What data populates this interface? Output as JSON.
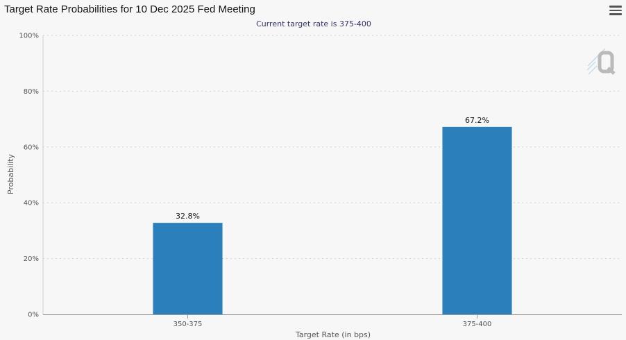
{
  "header": {
    "title": "Target Rate Probabilities for 10 Dec 2025 Fed Meeting",
    "menu_icon": "hamburger-menu-icon"
  },
  "chart_data": {
    "type": "bar",
    "title": "Target Rate Probabilities for 10 Dec 2025 Fed Meeting",
    "subtitle": "Current target rate is 375-400",
    "categories": [
      "350-375",
      "375-400"
    ],
    "values": [
      32.8,
      67.2
    ],
    "data_labels": [
      "32.8%",
      "67.2%"
    ],
    "xlabel": "Target Rate (in bps)",
    "ylabel": "Probability",
    "ylim": [
      0,
      100
    ],
    "yticks": [
      0,
      20,
      40,
      60,
      80,
      100
    ],
    "ytick_labels": [
      "0%",
      "20%",
      "40%",
      "60%",
      "80%",
      "100%"
    ],
    "grid": true,
    "bar_color": "#2b7fba",
    "watermark_icon": "q-logo-icon"
  }
}
